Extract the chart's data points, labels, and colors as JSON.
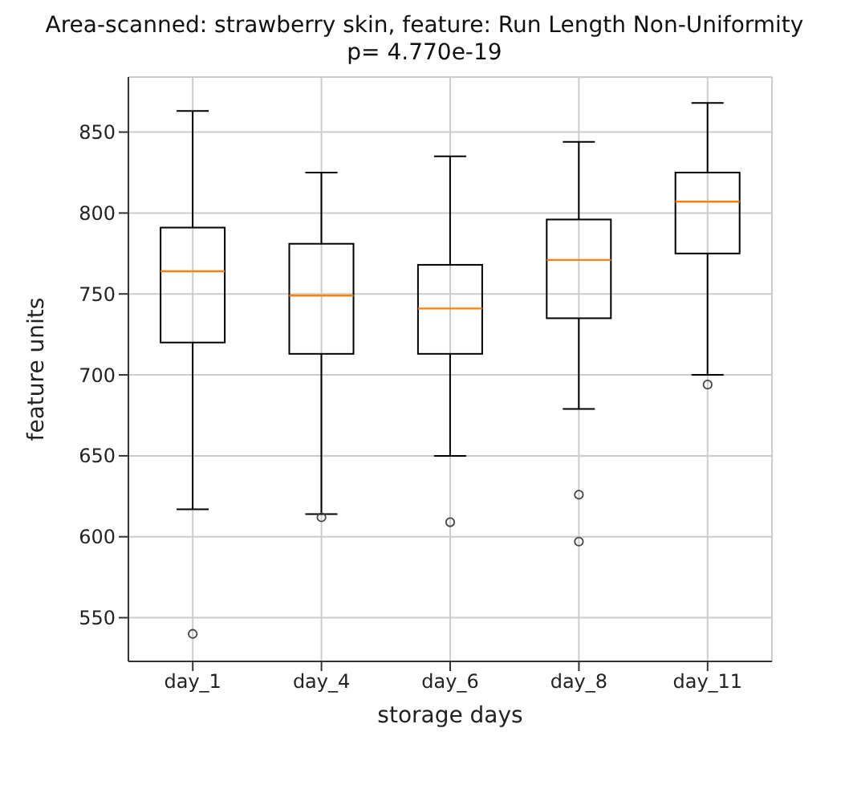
{
  "chart_data": {
    "type": "box",
    "title": "Area-scanned: strawberry skin, feature: Run Length Non-Uniformity",
    "subtitle": "p= 4.770e-19",
    "xlabel": "storage days",
    "ylabel": "feature units",
    "categories": [
      "day_1",
      "day_4",
      "day_6",
      "day_8",
      "day_11"
    ],
    "series": [
      {
        "color": "#000000",
        "boxes": [
          {
            "low": 617,
            "q1": 720,
            "median": 764,
            "q3": 791,
            "high": 863,
            "outliers": [
              540
            ]
          },
          {
            "low": 614,
            "q1": 713,
            "median": 749,
            "q3": 781,
            "high": 825,
            "outliers": [
              612
            ]
          },
          {
            "low": 650,
            "q1": 713,
            "median": 741,
            "q3": 768,
            "high": 835,
            "outliers": [
              609
            ]
          },
          {
            "low": 679,
            "q1": 735,
            "median": 771,
            "q3": 796,
            "high": 844,
            "outliers": [
              626,
              597
            ]
          },
          {
            "low": 700,
            "q1": 775,
            "median": 807,
            "q3": 825,
            "high": 868,
            "outliers": [
              694
            ]
          }
        ]
      }
    ],
    "ylim": [
      523,
      884
    ],
    "yticks": [
      550,
      600,
      650,
      700,
      750,
      800,
      850
    ],
    "grid": true
  }
}
